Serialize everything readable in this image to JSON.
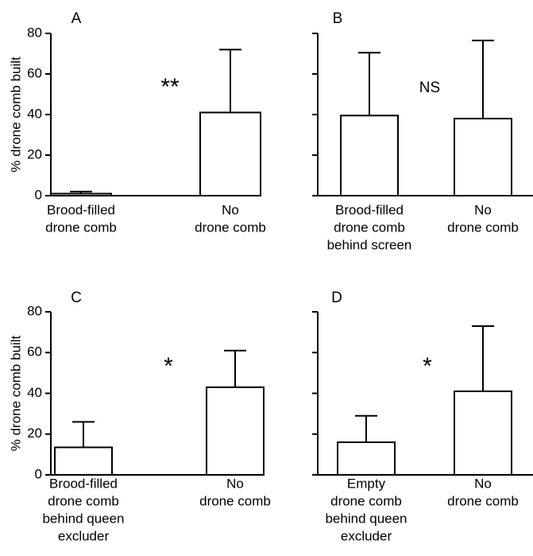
{
  "chart_data": [
    {
      "type": "bar",
      "panel_label": "A",
      "ylabel": "% drone comb built",
      "ylim": [
        0,
        80
      ],
      "yticks": [
        "0",
        "20",
        "40",
        "60",
        "80"
      ],
      "categories": [
        [
          "Brood-filled",
          "drone comb"
        ],
        [
          "No",
          "drone comb"
        ]
      ],
      "values": [
        1,
        41
      ],
      "error_upper": [
        2,
        72
      ],
      "significance": "**"
    },
    {
      "type": "bar",
      "panel_label": "B",
      "ylabel": "",
      "ylim": [
        0,
        80
      ],
      "yticks": [],
      "categories": [
        [
          "Brood-filled",
          "drone comb",
          "behind screen"
        ],
        [
          "No",
          "drone comb"
        ]
      ],
      "values": [
        39.5,
        38
      ],
      "error_upper": [
        70.5,
        76.5
      ],
      "significance": "NS"
    },
    {
      "type": "bar",
      "panel_label": "C",
      "ylabel": "% drone comb built",
      "ylim": [
        0,
        80
      ],
      "yticks": [
        "0",
        "20",
        "40",
        "60",
        "80"
      ],
      "categories": [
        [
          "Brood-filled",
          "drone comb",
          "behind queen",
          "excluder"
        ],
        [
          "No",
          "drone comb"
        ]
      ],
      "values": [
        13.5,
        43
      ],
      "error_upper": [
        26,
        61
      ],
      "significance": "*"
    },
    {
      "type": "bar",
      "panel_label": "D",
      "ylabel": "",
      "ylim": [
        0,
        80
      ],
      "yticks": [],
      "categories": [
        [
          "Empty",
          "drone comb",
          "behind queen",
          "excluder"
        ],
        [
          "No",
          "drone comb"
        ]
      ],
      "values": [
        16,
        41
      ],
      "error_upper": [
        29,
        73
      ],
      "significance": "*"
    }
  ]
}
